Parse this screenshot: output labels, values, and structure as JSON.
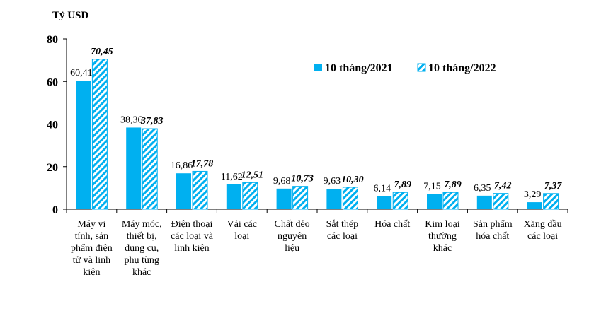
{
  "chart_data": {
    "type": "bar",
    "title": "",
    "ylabel": "Tỷ USD",
    "xlabel": "",
    "ylim": [
      0,
      80
    ],
    "yticks": [
      "0",
      "20",
      "40",
      "60",
      "80"
    ],
    "categories": [
      [
        "Máy vi",
        "tính, sản",
        "phẩm điện",
        "tử và linh",
        "kiện"
      ],
      [
        "Máy móc,",
        "thiết bị,",
        "dụng cụ,",
        "phụ tùng",
        "khác"
      ],
      [
        "Điện thoại",
        "các loại và",
        "linh kiện"
      ],
      [
        "Vải các",
        "loại"
      ],
      [
        "Chất dẻo",
        "nguyên",
        "liệu"
      ],
      [
        "Sắt thép",
        "các loại"
      ],
      [
        "Hóa chất"
      ],
      [
        "Kim loại",
        "thường",
        "khác"
      ],
      [
        "Sản phẩm",
        "hóa chất"
      ],
      [
        "Xăng dầu",
        "các loại"
      ]
    ],
    "series": [
      {
        "name": "10 tháng/2021",
        "values": [
          60.41,
          38.36,
          16.86,
          11.62,
          9.68,
          9.63,
          6.14,
          7.15,
          6.35,
          3.29
        ],
        "labels": [
          "60,41",
          "38,36",
          "16,86",
          "11,62",
          "9,68",
          "9,63",
          "6,14",
          "7,15",
          "6,35",
          "3,29"
        ],
        "color": "#00b0f0",
        "pattern": "solid"
      },
      {
        "name": "10 tháng/2022",
        "values": [
          70.45,
          37.83,
          17.78,
          12.51,
          10.73,
          10.3,
          7.89,
          7.89,
          7.42,
          7.37
        ],
        "labels": [
          "70,45",
          "37,83",
          "17,78",
          "12,51",
          "10,73",
          "10,30",
          "7,89",
          "7,89",
          "7,42",
          "7,37"
        ],
        "color": "#00b0f0",
        "pattern": "diagonal-stripes"
      }
    ],
    "legend": {
      "position": "top-right"
    },
    "grid": false
  }
}
